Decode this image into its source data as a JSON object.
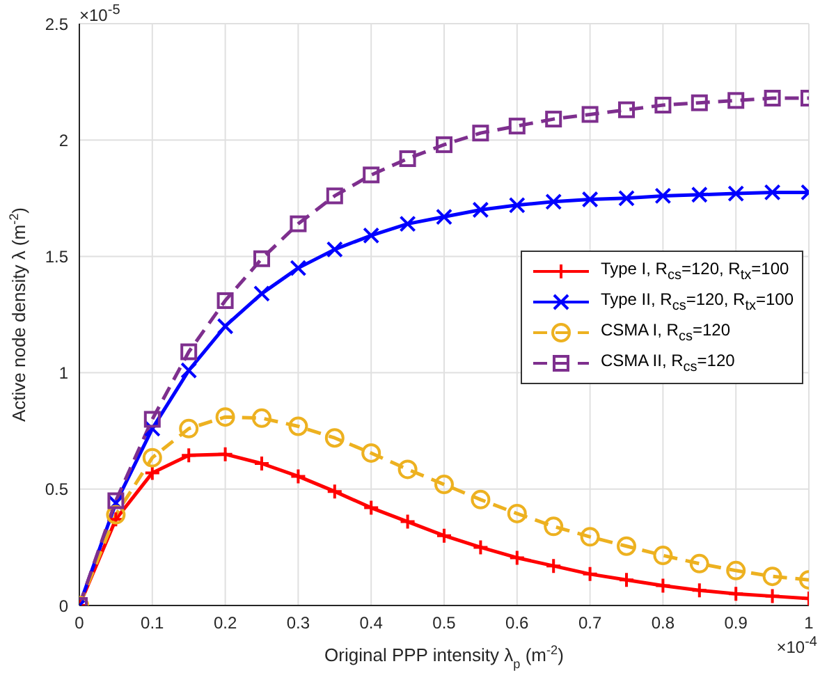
{
  "chart_data": {
    "type": "line",
    "xlabel": "Original PPP intensity λ$_{p}$ (m$^{-2}$)",
    "ylabel": "Active node density λ (m$^{-2}$)",
    "annotations": [
      "×10$^{-5}$",
      "×10$^{-4}$"
    ],
    "x": [
      0,
      0.05,
      0.1,
      0.15,
      0.2,
      0.25,
      0.3,
      0.35,
      0.4,
      0.45,
      0.5,
      0.55,
      0.6,
      0.65,
      0.7,
      0.75,
      0.8,
      0.85,
      0.9,
      0.95,
      1
    ],
    "series": [
      {
        "name": "Type I, R$_{cs}$=120, R$_{tx}$=100",
        "color": "#ff0000",
        "marker": "plus",
        "line_style": "solid",
        "values": [
          0,
          0.37,
          0.57,
          0.645,
          0.65,
          0.61,
          0.555,
          0.49,
          0.42,
          0.36,
          0.3,
          0.25,
          0.205,
          0.17,
          0.135,
          0.11,
          0.085,
          0.065,
          0.05,
          0.04,
          0.03
        ]
      },
      {
        "name": "Type II, R$_{cs}$=120, R$_{tx}$=100",
        "color": "#0000ff",
        "marker": "cross",
        "line_style": "solid",
        "values": [
          0,
          0.44,
          0.76,
          1.01,
          1.2,
          1.34,
          1.45,
          1.53,
          1.59,
          1.64,
          1.67,
          1.7,
          1.72,
          1.735,
          1.745,
          1.75,
          1.76,
          1.765,
          1.77,
          1.775,
          1.775
        ]
      },
      {
        "name": "CSMA I, R$_{cs}$=120",
        "color": "#edb120",
        "marker": "circle",
        "line_style": "dashed",
        "values": [
          0,
          0.39,
          0.635,
          0.76,
          0.81,
          0.805,
          0.77,
          0.72,
          0.655,
          0.585,
          0.52,
          0.455,
          0.395,
          0.34,
          0.295,
          0.255,
          0.215,
          0.18,
          0.15,
          0.125,
          0.11
        ]
      },
      {
        "name": "CSMA II, R$_{cs}$=120",
        "color": "#7e2f8e",
        "marker": "square",
        "line_style": "dashed",
        "values": [
          0,
          0.45,
          0.8,
          1.09,
          1.31,
          1.49,
          1.64,
          1.76,
          1.85,
          1.92,
          1.98,
          2.03,
          2.06,
          2.09,
          2.11,
          2.13,
          2.15,
          2.16,
          2.17,
          2.18,
          2.18
        ]
      }
    ],
    "xlim": [
      0,
      1
    ],
    "xticks": [
      0,
      0.1,
      0.2,
      0.3,
      0.4,
      0.5,
      0.6,
      0.7,
      0.8,
      0.9,
      1
    ],
    "ylim": [
      0,
      2.5
    ],
    "yticks": [
      0,
      0.5,
      1,
      1.5,
      2,
      2.5
    ],
    "grid": true,
    "legend": "right"
  }
}
